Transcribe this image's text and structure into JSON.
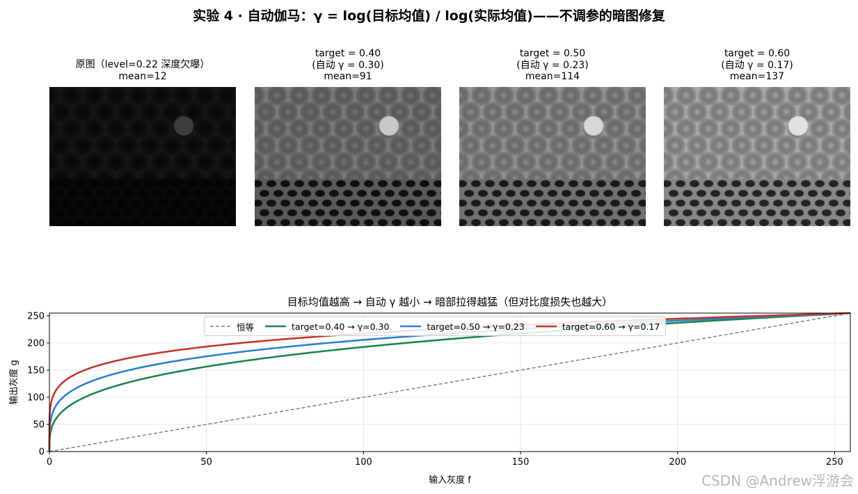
{
  "figure": {
    "title": "实验 4 · 自动伽马：γ = log(目标均值) / log(实际均值)——不调参的暗图修复",
    "watermark": "CSDN @Andrew浮游会"
  },
  "panels": [
    {
      "title": "原图（level=0.22 深度欠曝）\nmean=12",
      "base_gray": 22,
      "band_gray": 8,
      "dot_gray": 4,
      "blob_gray": 60,
      "mean": 12
    },
    {
      "title": "target = 0.40\n(自动 γ = 0.30)\nmean=91",
      "base_gray": 125,
      "band_gray": 90,
      "dot_gray": 15,
      "blob_gray": 200,
      "mean": 91
    },
    {
      "title": "target = 0.50\n(自动 γ = 0.23)\nmean=114",
      "base_gray": 148,
      "band_gray": 112,
      "dot_gray": 25,
      "blob_gray": 215,
      "mean": 114
    },
    {
      "title": "target = 0.60\n(自动 γ = 0.17)\nmean=137",
      "base_gray": 170,
      "band_gray": 135,
      "dot_gray": 35,
      "blob_gray": 225,
      "mean": 137
    }
  ],
  "chart_data": {
    "type": "line",
    "title": "目标均值越高 → 自动 γ 越小 → 暗部拉得越猛（但对比度损失也越大）",
    "xlabel": "输入灰度 f",
    "ylabel": "输出灰度 g",
    "xlim": [
      0,
      255
    ],
    "ylim": [
      0,
      255
    ],
    "xticks": [
      0,
      50,
      100,
      150,
      200,
      250
    ],
    "yticks": [
      0,
      50,
      100,
      150,
      200,
      250
    ],
    "grid": true,
    "legend_position": "top-center",
    "series": [
      {
        "name": "恒等",
        "gamma": 1.0,
        "color": "#808080",
        "dashed": true
      },
      {
        "name": "target=0.40 → γ=0.30",
        "gamma": 0.3,
        "color": "#1e8449",
        "dashed": false
      },
      {
        "name": "target=0.50 → γ=0.23",
        "gamma": 0.23,
        "color": "#2e7fcf",
        "dashed": false
      },
      {
        "name": "target=0.60 → γ=0.17",
        "gamma": 0.17,
        "color": "#c0392b",
        "dashed": false
      }
    ]
  }
}
